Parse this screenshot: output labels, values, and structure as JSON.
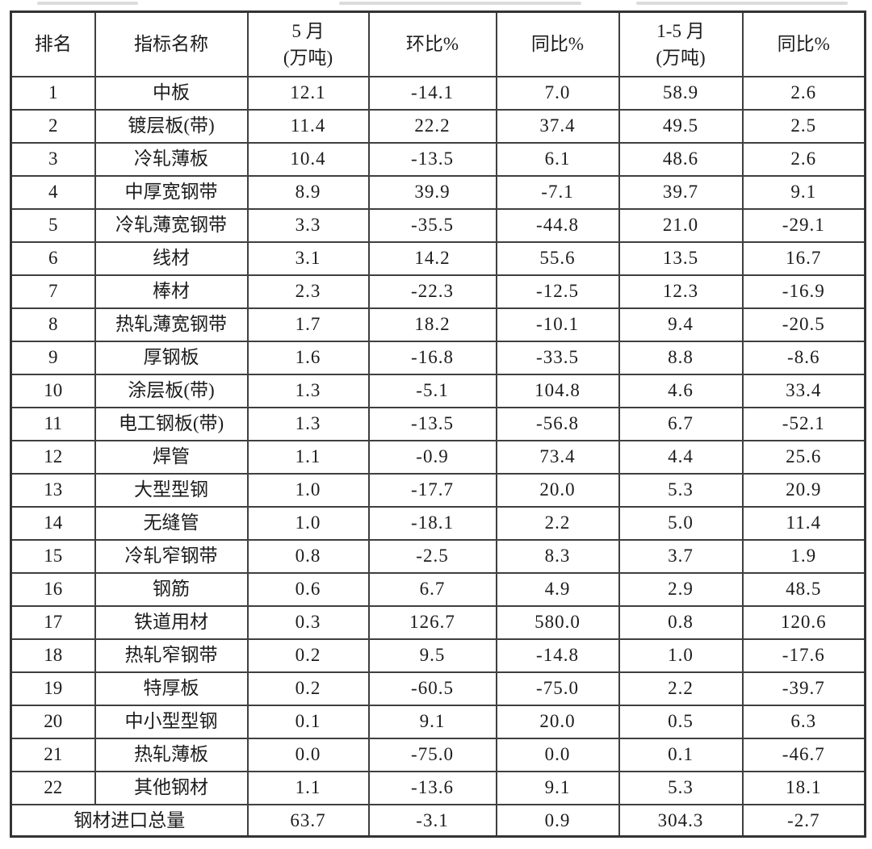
{
  "colors": {
    "border": "#3f3f3f",
    "outer_border": "#333333",
    "text": "#1c1c1c",
    "background": "#ffffff"
  },
  "table": {
    "columns": [
      {
        "id": "rank",
        "title": "排名"
      },
      {
        "id": "name",
        "title": "指标名称"
      },
      {
        "id": "may-volume",
        "title": "5 月",
        "subtitle": "(万吨)"
      },
      {
        "id": "mom-pct",
        "title": "环比%"
      },
      {
        "id": "yoy-pct",
        "title": "同比%"
      },
      {
        "id": "cum-volume",
        "title": "1-5 月",
        "subtitle": "(万吨)"
      },
      {
        "id": "cum-yoy-pct",
        "title": "同比%"
      }
    ],
    "rows": [
      [
        "1",
        "中板",
        "12.1",
        "-14.1",
        "7.0",
        "58.9",
        "2.6"
      ],
      [
        "2",
        "镀层板(带)",
        "11.4",
        "22.2",
        "37.4",
        "49.5",
        "2.5"
      ],
      [
        "3",
        "冷轧薄板",
        "10.4",
        "-13.5",
        "6.1",
        "48.6",
        "2.6"
      ],
      [
        "4",
        "中厚宽钢带",
        "8.9",
        "39.9",
        "-7.1",
        "39.7",
        "9.1"
      ],
      [
        "5",
        "冷轧薄宽钢带",
        "3.3",
        "-35.5",
        "-44.8",
        "21.0",
        "-29.1"
      ],
      [
        "6",
        "线材",
        "3.1",
        "14.2",
        "55.6",
        "13.5",
        "16.7"
      ],
      [
        "7",
        "棒材",
        "2.3",
        "-22.3",
        "-12.5",
        "12.3",
        "-16.9"
      ],
      [
        "8",
        "热轧薄宽钢带",
        "1.7",
        "18.2",
        "-10.1",
        "9.4",
        "-20.5"
      ],
      [
        "9",
        "厚钢板",
        "1.6",
        "-16.8",
        "-33.5",
        "8.8",
        "-8.6"
      ],
      [
        "10",
        "涂层板(带)",
        "1.3",
        "-5.1",
        "104.8",
        "4.6",
        "33.4"
      ],
      [
        "11",
        "电工钢板(带)",
        "1.3",
        "-13.5",
        "-56.8",
        "6.7",
        "-52.1"
      ],
      [
        "12",
        "焊管",
        "1.1",
        "-0.9",
        "73.4",
        "4.4",
        "25.6"
      ],
      [
        "13",
        "大型型钢",
        "1.0",
        "-17.7",
        "20.0",
        "5.3",
        "20.9"
      ],
      [
        "14",
        "无缝管",
        "1.0",
        "-18.1",
        "2.2",
        "5.0",
        "11.4"
      ],
      [
        "15",
        "冷轧窄钢带",
        "0.8",
        "-2.5",
        "8.3",
        "3.7",
        "1.9"
      ],
      [
        "16",
        "钢筋",
        "0.6",
        "6.7",
        "4.9",
        "2.9",
        "48.5"
      ],
      [
        "17",
        "铁道用材",
        "0.3",
        "126.7",
        "580.0",
        "0.8",
        "120.6"
      ],
      [
        "18",
        "热轧窄钢带",
        "0.2",
        "9.5",
        "-14.8",
        "1.0",
        "-17.6"
      ],
      [
        "19",
        "特厚板",
        "0.2",
        "-60.5",
        "-75.0",
        "2.2",
        "-39.7"
      ],
      [
        "20",
        "中小型型钢",
        "0.1",
        "9.1",
        "20.0",
        "0.5",
        "6.3"
      ],
      [
        "21",
        "热轧薄板",
        "0.0",
        "-75.0",
        "0.0",
        "0.1",
        "-46.7"
      ],
      [
        "22",
        "其他钢材",
        "1.1",
        "-13.6",
        "9.1",
        "5.3",
        "18.1"
      ]
    ],
    "total_row": {
      "label": "钢材进口总量",
      "values": [
        "63.7",
        "-3.1",
        "0.9",
        "304.3",
        "-2.7"
      ]
    }
  }
}
